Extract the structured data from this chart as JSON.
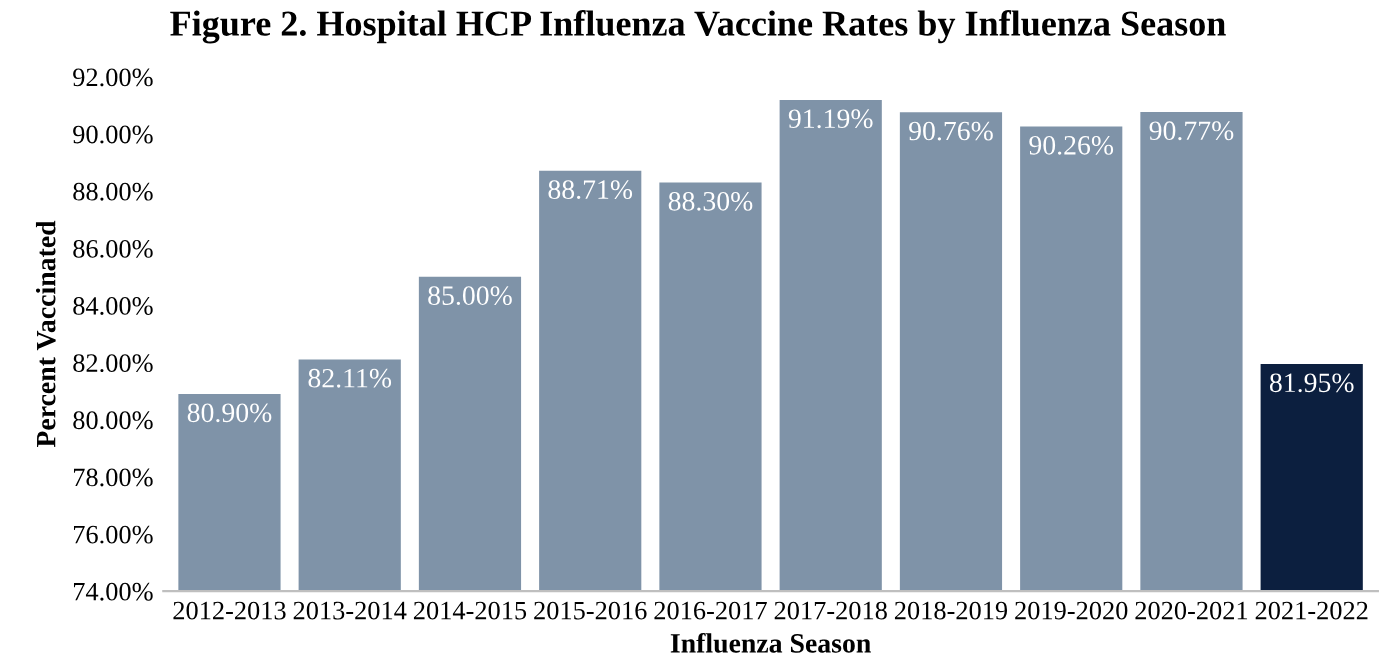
{
  "chart_data": {
    "type": "bar",
    "title": "Figure 2. Hospital HCP Influenza Vaccine Rates by Influenza Season",
    "xlabel": "Influenza Season",
    "ylabel": "Percent Vaccinated",
    "categories": [
      "2012-2013",
      "2013-2014",
      "2014-2015",
      "2015-2016",
      "2016-2017",
      "2017-2018",
      "2018-2019",
      "2019-2020",
      "2020-2021",
      "2021-2022"
    ],
    "values": [
      80.9,
      82.11,
      85.0,
      88.71,
      88.3,
      91.19,
      90.76,
      90.26,
      90.77,
      81.95
    ],
    "value_labels": [
      "80.90%",
      "82.11%",
      "85.00%",
      "88.71%",
      "88.30%",
      "91.19%",
      "90.76%",
      "90.26%",
      "90.77%",
      "81.95%"
    ],
    "colors": [
      "#7f93a8",
      "#7f93a8",
      "#7f93a8",
      "#7f93a8",
      "#7f93a8",
      "#7f93a8",
      "#7f93a8",
      "#7f93a8",
      "#7f93a8",
      "#0c1f3f"
    ],
    "ylim": [
      74,
      92
    ],
    "yticks": [
      {
        "value": 74,
        "label": "74.00%"
      },
      {
        "value": 76,
        "label": "76.00%"
      },
      {
        "value": 78,
        "label": "78.00%"
      },
      {
        "value": 80,
        "label": "80.00%"
      },
      {
        "value": 82,
        "label": "82.00%"
      },
      {
        "value": 84,
        "label": "84.00%"
      },
      {
        "value": 86,
        "label": "86.00%"
      },
      {
        "value": 88,
        "label": "88.00%"
      },
      {
        "value": 90,
        "label": "90.00%"
      },
      {
        "value": 92,
        "label": "92.00%"
      }
    ],
    "grid": false,
    "legend": false
  }
}
